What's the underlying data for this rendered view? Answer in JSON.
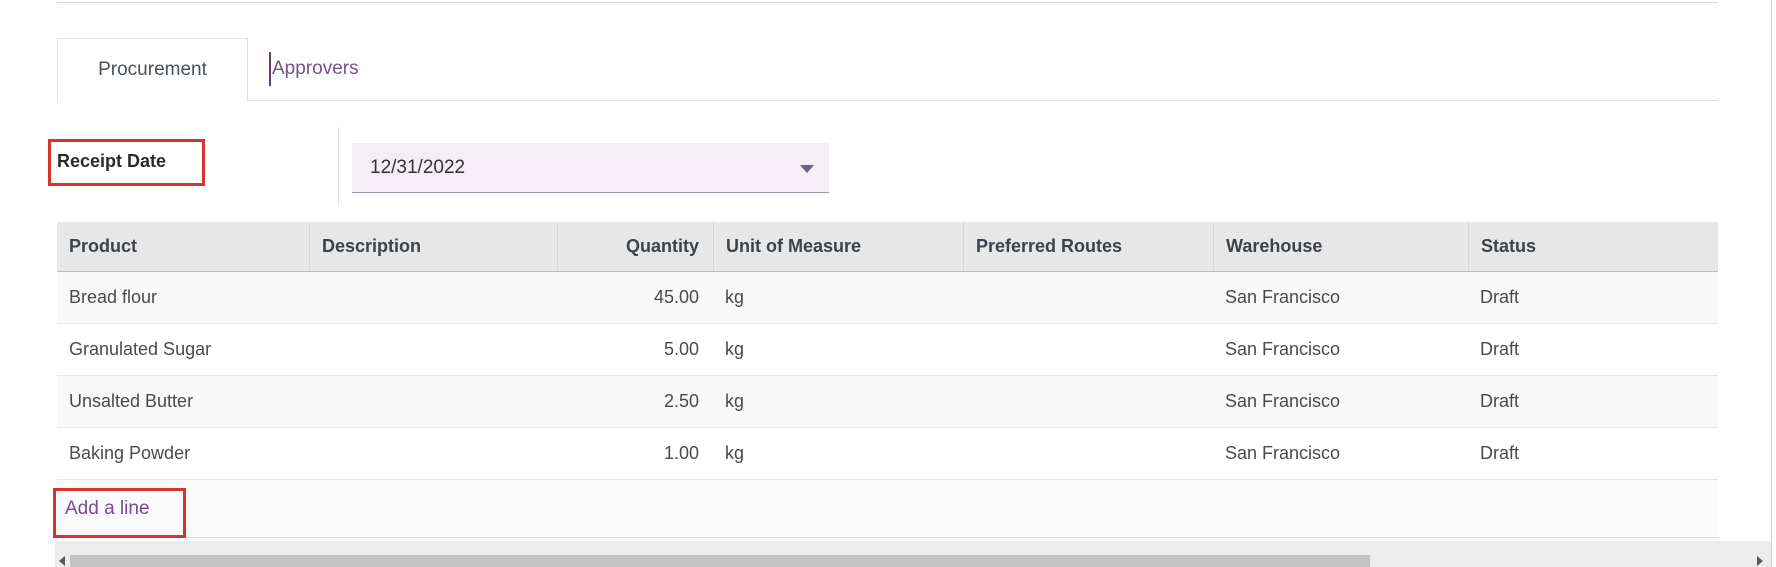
{
  "tabs": [
    {
      "label": "Procurement",
      "active": true
    },
    {
      "label": "Approvers",
      "active": false
    }
  ],
  "form": {
    "receipt_date": {
      "label": "Receipt Date",
      "value": "12/31/2022"
    }
  },
  "table": {
    "columns": [
      {
        "label": "Product",
        "align": "left"
      },
      {
        "label": "Description",
        "align": "left"
      },
      {
        "label": "Quantity",
        "align": "right"
      },
      {
        "label": "Unit of Measure",
        "align": "left"
      },
      {
        "label": "Preferred Routes",
        "align": "left"
      },
      {
        "label": "Warehouse",
        "align": "left"
      },
      {
        "label": "Status",
        "align": "left"
      }
    ],
    "rows": [
      {
        "product": "Bread flour",
        "description": "",
        "quantity": "45.00",
        "unit_of_measure": "kg",
        "preferred_routes": "",
        "warehouse": "San Francisco",
        "status": "Draft"
      },
      {
        "product": "Granulated Sugar",
        "description": "",
        "quantity": "5.00",
        "unit_of_measure": "kg",
        "preferred_routes": "",
        "warehouse": "San Francisco",
        "status": "Draft"
      },
      {
        "product": "Unsalted Butter",
        "description": "",
        "quantity": "2.50",
        "unit_of_measure": "kg",
        "preferred_routes": "",
        "warehouse": "San Francisco",
        "status": "Draft"
      },
      {
        "product": "Baking Powder",
        "description": "",
        "quantity": "1.00",
        "unit_of_measure": "kg",
        "preferred_routes": "",
        "warehouse": "San Francisco",
        "status": "Draft"
      }
    ],
    "add_line_label": "Add a line"
  },
  "colors": {
    "accent_purple": "#764b8f",
    "annotation_red": "#d9342b",
    "date_field_bg": "#f5eef8",
    "header_bg": "#e7e7e7"
  }
}
